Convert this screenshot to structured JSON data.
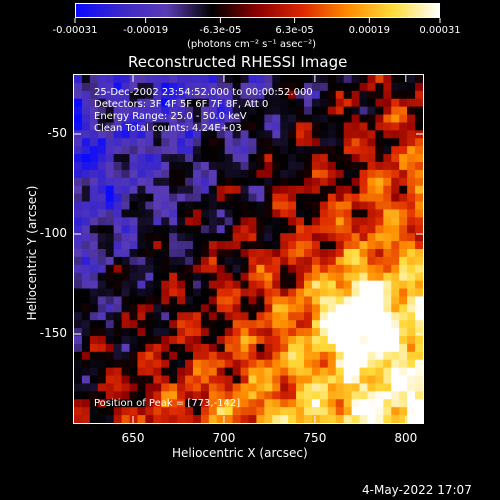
{
  "chart_data": {
    "type": "heatmap",
    "title": "Reconstructed RHESSI Image",
    "xlabel": "Heliocentric X (arcsec)",
    "ylabel": "Heliocentric Y (arcsec)",
    "xlim": [
      617,
      810
    ],
    "ylim": [
      -195,
      -20
    ],
    "x_ticks": [
      650,
      700,
      750,
      800
    ],
    "y_ticks": [
      -50,
      -100,
      -150
    ],
    "colorbar": {
      "label": "(photons cm⁻² s⁻¹ asec⁻²)",
      "ticks": [
        "-0.00031",
        "-0.00019",
        "-6.3e-05",
        "6.3e-05",
        "0.00019",
        "0.00031"
      ],
      "range": [
        -0.00031,
        0.00031
      ],
      "colors": [
        "#0a0aff",
        "#3c28c8",
        "#5a3cb4",
        "#000000",
        "#8c0000",
        "#dc2800",
        "#ff8c00",
        "#ffdc3c",
        "#ffffff"
      ]
    },
    "annotations": [
      "25-Dec-2002 23:54:52.000 to 00:00:52.000",
      "Detectors: 3F 4F 5F 6F 7F 8F, Att 0",
      "Energy Range: 25.0 - 50.0 keV",
      "Clean    Total counts: 4.24E+03"
    ],
    "peak_label": "Position of Peak = [773,-142]",
    "peak": [
      773,
      -142
    ]
  },
  "footer_date": "4-May-2022 17:07"
}
